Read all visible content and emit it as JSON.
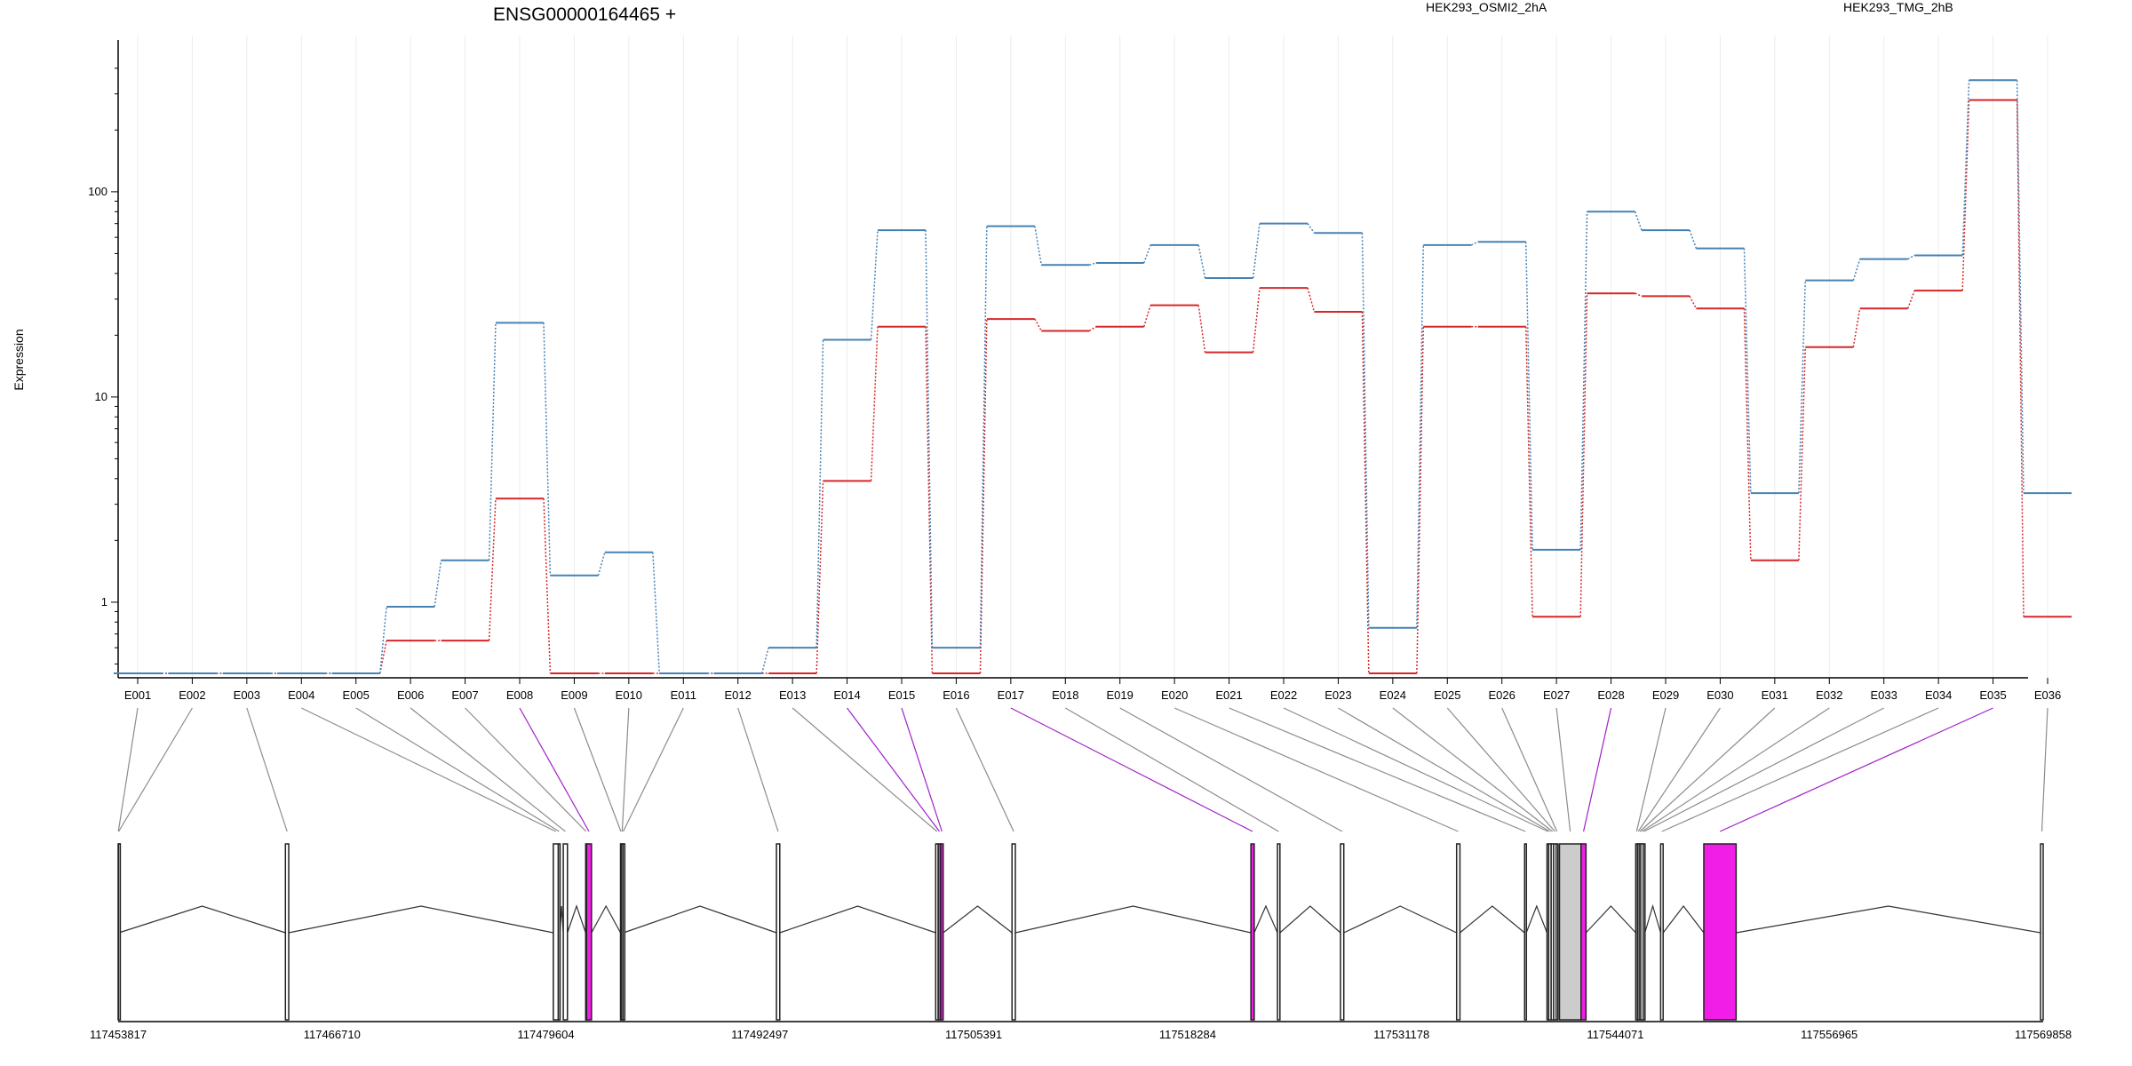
{
  "chart_data": {
    "type": "line",
    "title": "ENSG00000164465 +",
    "ylabel": "Expression",
    "y_scale": "log",
    "ylim": [
      0.45,
      450
    ],
    "y_ticks": [
      {
        "value": 1,
        "label": "1"
      },
      {
        "value": 10,
        "label": "10"
      },
      {
        "value": 100,
        "label": "100"
      }
    ],
    "grid": "vertical",
    "legend": "top-right",
    "categories": [
      "E001",
      "E002",
      "E003",
      "E004",
      "E005",
      "E006",
      "E007",
      "E008",
      "E009",
      "E010",
      "E011",
      "E012",
      "E013",
      "E014",
      "E015",
      "E016",
      "E017",
      "E018",
      "E019",
      "E020",
      "E021",
      "E022",
      "E023",
      "E024",
      "E025",
      "E026",
      "E027",
      "E028",
      "E029",
      "E030",
      "E031",
      "E032",
      "E033",
      "E034",
      "E035",
      "E036"
    ],
    "series": [
      {
        "name": "HEK293_OSMI2_2hA",
        "color": "#d62728",
        "values": [
          0.45,
          0.45,
          0.45,
          0.45,
          0.45,
          0.65,
          0.65,
          3.2,
          0.45,
          0.45,
          0.45,
          0.45,
          0.45,
          3.9,
          22,
          0.45,
          24,
          21,
          22,
          28,
          16.5,
          34,
          26,
          0.45,
          22,
          22,
          0.85,
          32,
          31,
          27,
          1.6,
          17.5,
          27,
          33,
          280,
          0.85
        ]
      },
      {
        "name": "HEK293_TMG_2hB",
        "color": "#4682b4",
        "values": [
          0.45,
          0.45,
          0.45,
          0.45,
          0.45,
          0.95,
          1.6,
          23,
          1.35,
          1.75,
          0.45,
          0.45,
          0.6,
          19,
          65,
          0.6,
          68,
          44,
          45,
          55,
          38,
          70,
          63,
          0.75,
          55,
          57,
          1.8,
          80,
          65,
          53,
          3.4,
          37,
          47,
          49,
          350,
          3.4
        ]
      }
    ],
    "genomic_axis": {
      "min": 117453817,
      "max": 117569858,
      "ticks": [
        "117453817",
        "117466710",
        "117479604",
        "117492497",
        "117505391",
        "117518284",
        "117531178",
        "117544071",
        "117556965",
        "117569858"
      ]
    },
    "exons": [
      {
        "id": "E001",
        "start": 117453817,
        "end": 117453840,
        "color": "#ffffff"
      },
      {
        "id": "E002",
        "start": 117453840,
        "end": 117453860,
        "color": "#ffffff"
      },
      {
        "id": "E003",
        "start": 117463900,
        "end": 117464100,
        "color": "#ffffff"
      },
      {
        "id": "E004",
        "start": 117480050,
        "end": 117480350,
        "color": "#ffffff"
      },
      {
        "id": "E005",
        "start": 117480350,
        "end": 117480450,
        "color": "#ffffff"
      },
      {
        "id": "E006",
        "start": 117480650,
        "end": 117480900,
        "color": "#ffffff"
      },
      {
        "id": "E007",
        "start": 117482000,
        "end": 117482050,
        "color": "#ffffff"
      },
      {
        "id": "E008",
        "start": 117482050,
        "end": 117482350,
        "color": "#f01ee6"
      },
      {
        "id": "E009",
        "start": 117484100,
        "end": 117484150,
        "color": "#ffffff"
      },
      {
        "id": "E010",
        "start": 117484150,
        "end": 117484250,
        "color": "#ffffff"
      },
      {
        "id": "E011",
        "start": 117484250,
        "end": 117484280,
        "color": "#ffffff"
      },
      {
        "id": "E012",
        "start": 117493500,
        "end": 117493700,
        "color": "#ffffff"
      },
      {
        "id": "E013",
        "start": 117503100,
        "end": 117503250,
        "color": "#ffffff"
      },
      {
        "id": "E014",
        "start": 117503250,
        "end": 117503400,
        "color": "#f01ee6"
      },
      {
        "id": "E015",
        "start": 117503400,
        "end": 117503550,
        "color": "#f01ee6"
      },
      {
        "id": "E016",
        "start": 117507700,
        "end": 117507900,
        "color": "#ffffff"
      },
      {
        "id": "E017",
        "start": 117522100,
        "end": 117522300,
        "color": "#f01ee6"
      },
      {
        "id": "E018",
        "start": 117523700,
        "end": 117523850,
        "color": "#ffffff"
      },
      {
        "id": "E019",
        "start": 117527500,
        "end": 117527700,
        "color": "#ffffff"
      },
      {
        "id": "E020",
        "start": 117534500,
        "end": 117534700,
        "color": "#ffffff"
      },
      {
        "id": "E021",
        "start": 117538600,
        "end": 117538700,
        "color": "#ffffff"
      },
      {
        "id": "E022",
        "start": 117539950,
        "end": 117540050,
        "color": "#ffffff"
      },
      {
        "id": "E023",
        "start": 117540050,
        "end": 117540200,
        "color": "#ffffff"
      },
      {
        "id": "E024",
        "start": 117540200,
        "end": 117540350,
        "color": "#ffffff"
      },
      {
        "id": "E025",
        "start": 117540350,
        "end": 117540500,
        "color": "#ffffff"
      },
      {
        "id": "E026",
        "start": 117540500,
        "end": 117540600,
        "color": "#ffffff"
      },
      {
        "id": "E027",
        "start": 117540700,
        "end": 117542000,
        "color": "#cccccc"
      },
      {
        "id": "E028",
        "start": 117542000,
        "end": 117542300,
        "color": "#f01ee6"
      },
      {
        "id": "E029",
        "start": 117545300,
        "end": 117545400,
        "color": "#ffffff"
      },
      {
        "id": "E030",
        "start": 117545400,
        "end": 117545500,
        "color": "#ffffff"
      },
      {
        "id": "E031",
        "start": 117545500,
        "end": 117545600,
        "color": "#ffffff"
      },
      {
        "id": "E032",
        "start": 117545600,
        "end": 117545750,
        "color": "#ffffff"
      },
      {
        "id": "E033",
        "start": 117545750,
        "end": 117545850,
        "color": "#ffffff"
      },
      {
        "id": "E034",
        "start": 117546800,
        "end": 117546950,
        "color": "#ffffff"
      },
      {
        "id": "E035",
        "start": 117549400,
        "end": 117551350,
        "color": "#f01ee6"
      },
      {
        "id": "E036",
        "start": 117569700,
        "end": 117569858,
        "color": "#ffffff"
      }
    ]
  }
}
